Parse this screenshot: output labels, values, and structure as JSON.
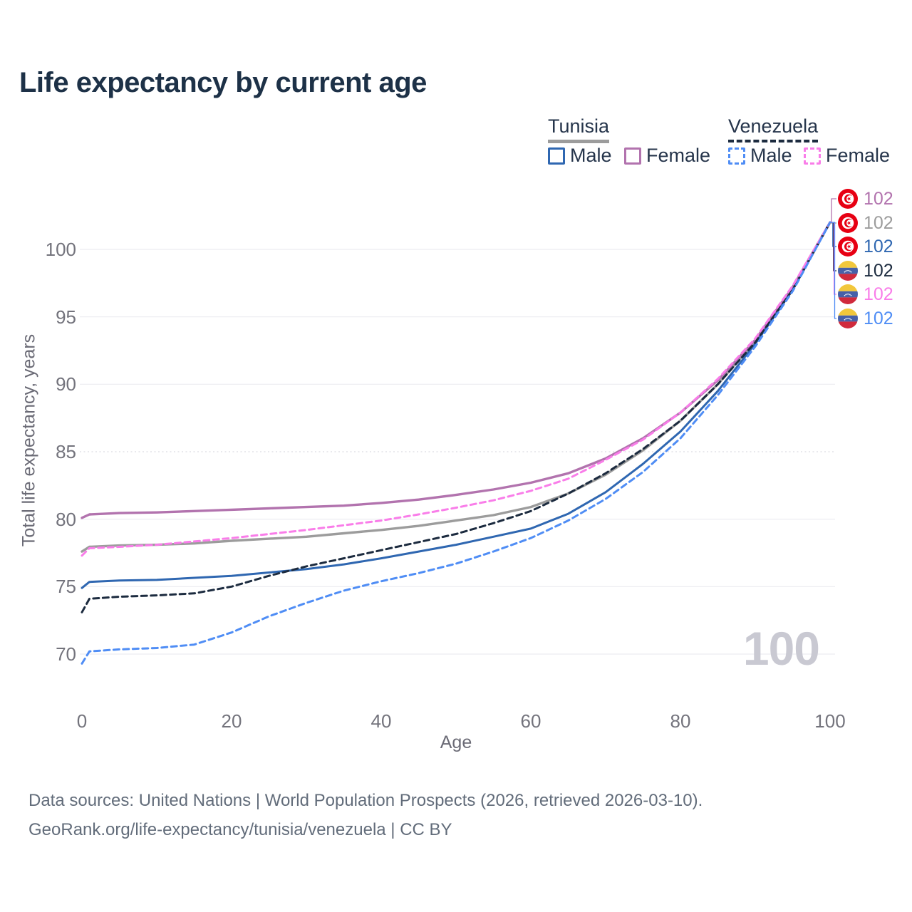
{
  "title": "Life expectancy by current age",
  "legend": {
    "tunisia": {
      "label": "Tunisia",
      "male": "Male",
      "female": "Female"
    },
    "venezuela": {
      "label": "Venezuela",
      "male": "Male",
      "female": "Female"
    }
  },
  "chart_data": {
    "type": "line",
    "title": "Life expectancy by current age",
    "xlabel": "Age",
    "ylabel": "Total life expectancy, years",
    "xlim": [
      0,
      100
    ],
    "ylim": [
      69,
      102.5
    ],
    "x_ticks": [
      0,
      20,
      40,
      60,
      80,
      100
    ],
    "y_ticks": [
      70,
      75,
      80,
      85,
      90,
      95,
      100
    ],
    "grid": true,
    "legend_position": "top-right",
    "x": [
      0,
      1,
      5,
      10,
      15,
      20,
      25,
      30,
      35,
      40,
      45,
      50,
      55,
      60,
      65,
      70,
      75,
      80,
      85,
      90,
      95,
      100
    ],
    "series": [
      {
        "name": "Tunisia (both sexes)",
        "country": "Tunisia",
        "sex": "total",
        "color": "#9c9c9c",
        "dash": false,
        "width": 3.4,
        "values": [
          77.6,
          77.95,
          78.05,
          78.1,
          78.2,
          78.4,
          78.55,
          78.7,
          78.95,
          79.2,
          79.5,
          79.9,
          80.3,
          80.9,
          81.9,
          83.3,
          85.1,
          87.3,
          90.0,
          93.2,
          97.1,
          102
        ]
      },
      {
        "name": "Tunisia Female",
        "country": "Tunisia",
        "sex": "female",
        "color": "#b273ae",
        "dash": false,
        "width": 3.4,
        "values": [
          80.1,
          80.35,
          80.45,
          80.5,
          80.6,
          80.7,
          80.8,
          80.9,
          81.0,
          81.2,
          81.45,
          81.8,
          82.2,
          82.7,
          83.4,
          84.5,
          86.0,
          87.9,
          90.3,
          93.3,
          97.2,
          102
        ]
      },
      {
        "name": "Tunisia Male",
        "country": "Tunisia",
        "sex": "male",
        "color": "#2f67b1",
        "dash": false,
        "width": 3,
        "values": [
          74.9,
          75.35,
          75.45,
          75.5,
          75.65,
          75.8,
          76.05,
          76.3,
          76.65,
          77.1,
          77.6,
          78.1,
          78.7,
          79.3,
          80.4,
          82.0,
          84.1,
          86.5,
          89.5,
          93.0,
          97.0,
          102
        ]
      },
      {
        "name": "Venezuela (both sexes)",
        "country": "Venezuela",
        "sex": "total",
        "color": "#1c2b3f",
        "dash": true,
        "width": 3,
        "values": [
          73.1,
          74.1,
          74.25,
          74.35,
          74.5,
          75.0,
          75.8,
          76.5,
          77.1,
          77.7,
          78.3,
          78.9,
          79.7,
          80.6,
          81.9,
          83.4,
          85.2,
          87.3,
          90.0,
          93.1,
          97.0,
          102
        ]
      },
      {
        "name": "Venezuela Female",
        "country": "Venezuela",
        "sex": "female",
        "color": "#f97de9",
        "dash": true,
        "width": 3,
        "values": [
          77.3,
          77.85,
          77.95,
          78.1,
          78.35,
          78.6,
          78.9,
          79.2,
          79.55,
          79.9,
          80.35,
          80.85,
          81.4,
          82.1,
          83.0,
          84.4,
          85.9,
          87.9,
          90.4,
          93.4,
          97.3,
          102
        ]
      },
      {
        "name": "Venezuela Male",
        "country": "Venezuela",
        "sex": "male",
        "color": "#4f8df5",
        "dash": true,
        "width": 3,
        "values": [
          69.3,
          70.2,
          70.35,
          70.45,
          70.7,
          71.6,
          72.8,
          73.8,
          74.7,
          75.4,
          76.0,
          76.7,
          77.6,
          78.6,
          79.9,
          81.5,
          83.5,
          86.0,
          89.2,
          92.8,
          96.9,
          102
        ]
      }
    ]
  },
  "right_labels": [
    {
      "flag": "tunisia",
      "value": "102",
      "color": "#b273ae",
      "series": "Tunisia Female"
    },
    {
      "flag": "tunisia",
      "value": "102",
      "color": "#9c9c9c",
      "series": "Tunisia (both sexes)"
    },
    {
      "flag": "tunisia",
      "value": "102",
      "color": "#2f67b1",
      "series": "Tunisia Male"
    },
    {
      "flag": "venezuela",
      "value": "102",
      "color": "#1c2b3f",
      "series": "Venezuela (both sexes)"
    },
    {
      "flag": "venezuela",
      "value": "102",
      "color": "#f97de9",
      "series": "Venezuela Female"
    },
    {
      "flag": "venezuela",
      "value": "102",
      "color": "#4f8df5",
      "series": "Venezuela Male"
    }
  ],
  "watermark": "100",
  "footer": {
    "line1": "Data sources: United Nations | World Population Prospects (2026, retrieved 2026-03-10).",
    "line2": "GeoRank.org/life-expectancy/tunisia/venezuela | CC BY"
  },
  "colors": {
    "title": "#1d3147",
    "axis_text": "#73737c",
    "grid": "#ececf1",
    "watermark": "#c9c9d2"
  }
}
